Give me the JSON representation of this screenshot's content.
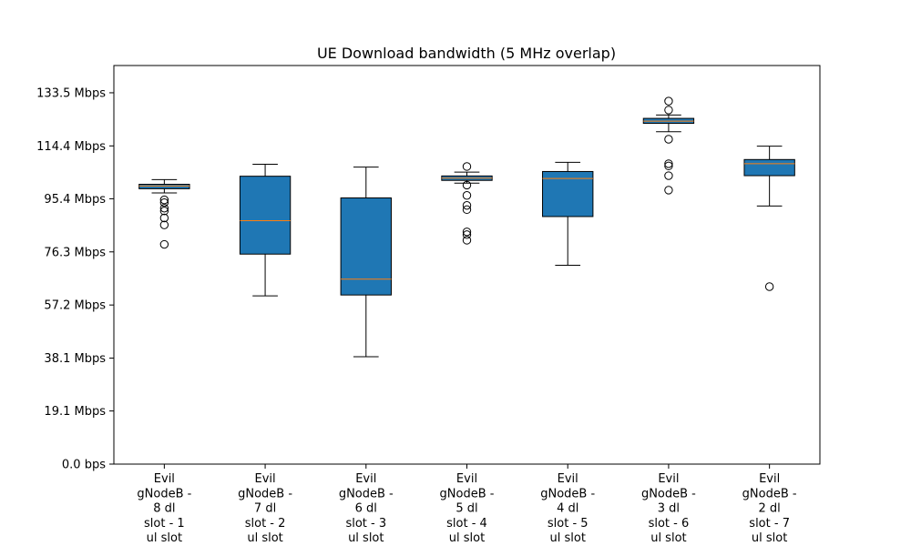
{
  "chart_data": {
    "type": "box",
    "title": "UE Download bandwidth (5 MHz overlap)",
    "xlabel": "",
    "ylabel": "",
    "ylim": [
      0,
      143.3
    ],
    "y_ticks": [
      {
        "value": 0,
        "label": "0.0 bps"
      },
      {
        "value": 19.1,
        "label": "19.1 Mbps"
      },
      {
        "value": 38.1,
        "label": "38.1 Mbps"
      },
      {
        "value": 57.2,
        "label": "57.2 Mbps"
      },
      {
        "value": 76.3,
        "label": "76.3 Mbps"
      },
      {
        "value": 95.4,
        "label": "95.4 Mbps"
      },
      {
        "value": 114.4,
        "label": "114.4 Mbps"
      },
      {
        "value": 133.5,
        "label": "133.5 Mbps"
      }
    ],
    "grid": false,
    "box_color": "#1f77b4",
    "median_color": "#ff7f0e",
    "categories": [
      [
        "Evil",
        "gNodeB -",
        "8 dl",
        "slot - 1",
        "ul slot"
      ],
      [
        "Evil",
        "gNodeB -",
        "7 dl",
        "slot - 2",
        "ul slot"
      ],
      [
        "Evil",
        "gNodeB -",
        "6 dl",
        "slot - 3",
        "ul slot"
      ],
      [
        "Evil",
        "gNodeB -",
        "5 dl",
        "slot - 4",
        "ul slot"
      ],
      [
        "Evil",
        "gNodeB -",
        "4 dl",
        "slot - 5",
        "ul slot"
      ],
      [
        "Evil",
        "gNodeB -",
        "3 dl",
        "slot - 6",
        "ul slot"
      ],
      [
        "Evil",
        "gNodeB -",
        "2 dl",
        "slot - 7",
        "ul slot"
      ]
    ],
    "boxes": [
      {
        "whisker_low": 97.5,
        "q1": 99.0,
        "median": 100.0,
        "q3": 100.6,
        "whisker_high": 102.3,
        "outliers": [
          95.0,
          94.0,
          92.0,
          91.0,
          88.5,
          86.0,
          79.0
        ]
      },
      {
        "whisker_low": 60.5,
        "q1": 75.5,
        "median": 87.5,
        "q3": 103.5,
        "whisker_high": 107.8,
        "outliers": []
      },
      {
        "whisker_low": 38.6,
        "q1": 60.8,
        "median": 66.5,
        "q3": 95.7,
        "whisker_high": 106.8,
        "outliers": []
      },
      {
        "whisker_low": 101.0,
        "q1": 102.0,
        "median": 102.8,
        "q3": 103.6,
        "whisker_high": 105.0,
        "outliers": [
          107.0,
          100.3,
          96.6,
          93.0,
          91.5,
          83.5,
          82.5,
          80.5
        ]
      },
      {
        "whisker_low": 71.5,
        "q1": 89.0,
        "median": 102.7,
        "q3": 105.2,
        "whisker_high": 108.5,
        "outliers": []
      },
      {
        "whisker_low": 119.5,
        "q1": 122.5,
        "median": 123.3,
        "q3": 124.3,
        "whisker_high": 125.5,
        "outliers": [
          130.5,
          127.3,
          116.8,
          108.0,
          107.2,
          103.7,
          98.5
        ]
      },
      {
        "whisker_low": 92.8,
        "q1": 103.7,
        "median": 108.0,
        "q3": 109.5,
        "whisker_high": 114.3,
        "outliers": [
          63.8
        ]
      }
    ]
  }
}
